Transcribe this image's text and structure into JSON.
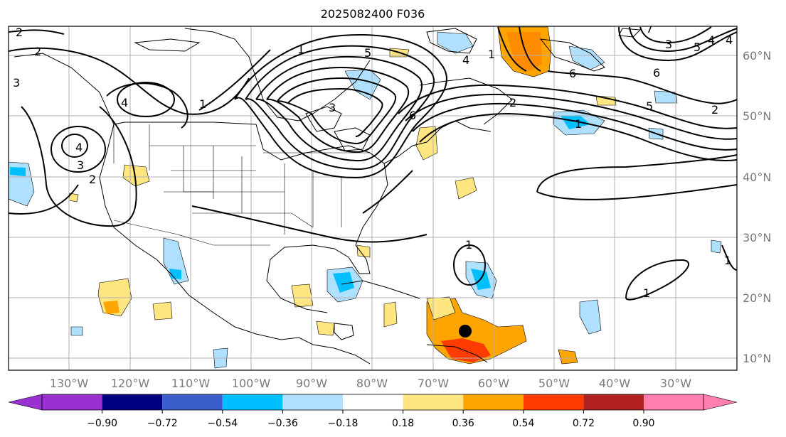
{
  "title": "2025082400 F036",
  "map": {
    "lon_labels": [
      "130°W",
      "120°W",
      "110°W",
      "100°W",
      "90°W",
      "80°W",
      "70°W",
      "60°W",
      "50°W",
      "40°W",
      "30°W"
    ],
    "lat_labels": [
      "60°N",
      "50°N",
      "40°N",
      "30°N",
      "20°N",
      "10°N"
    ],
    "contour_labels": [
      "2",
      "2",
      "3",
      "4",
      "1",
      "4",
      "3",
      "2",
      "1",
      "6",
      "5",
      "4",
      "3",
      "2",
      "1",
      "6",
      "5",
      "4",
      "1",
      "1",
      "1",
      "7",
      "6",
      "5",
      "4",
      "3",
      "2",
      "1"
    ],
    "storm_marker": "black-dot"
  },
  "colorbar": {
    "colors": [
      "#9b30d0",
      "#000080",
      "#3a5fcd",
      "#00bfff",
      "#b0e0ff",
      "#ffffff",
      "#ffe680",
      "#ffa500",
      "#ff3c00",
      "#b22222",
      "#ff80b0"
    ],
    "tick_labels": [
      "−0.90",
      "−0.72",
      "−0.54",
      "−0.36",
      "−0.18",
      "0.18",
      "0.36",
      "0.54",
      "0.72",
      "0.90"
    ]
  }
}
